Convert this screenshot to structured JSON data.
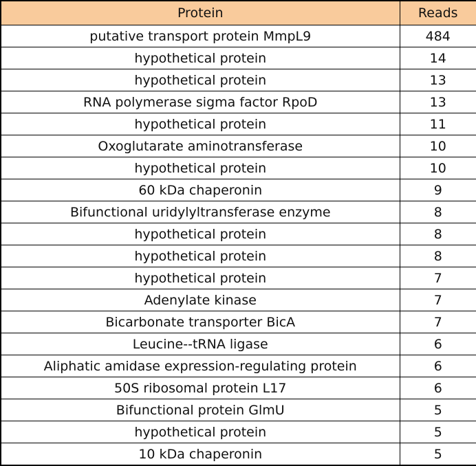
{
  "table": {
    "header_bg": "#f9cb9c",
    "columns": [
      "Protein",
      "Reads"
    ],
    "rows": [
      {
        "protein": "putative transport protein MmpL9",
        "reads": "484"
      },
      {
        "protein": "hypothetical protein",
        "reads": "14"
      },
      {
        "protein": "hypothetical protein",
        "reads": "13"
      },
      {
        "protein": "RNA polymerase sigma factor RpoD",
        "reads": "13"
      },
      {
        "protein": "hypothetical protein",
        "reads": "11"
      },
      {
        "protein": "Oxoglutarate aminotransferase",
        "reads": "10"
      },
      {
        "protein": "hypothetical protein",
        "reads": "10"
      },
      {
        "protein": "60 kDa chaperonin",
        "reads": "9"
      },
      {
        "protein": "Bifunctional uridylyltransferase enzyme",
        "reads": "8"
      },
      {
        "protein": "hypothetical protein",
        "reads": "8"
      },
      {
        "protein": "hypothetical protein",
        "reads": "8"
      },
      {
        "protein": "hypothetical protein",
        "reads": "7"
      },
      {
        "protein": "Adenylate kinase",
        "reads": "7"
      },
      {
        "protein": "Bicarbonate transporter BicA",
        "reads": "7"
      },
      {
        "protein": "Leucine--tRNA ligase",
        "reads": "6"
      },
      {
        "protein": "Aliphatic amidase expression-regulating protein",
        "reads": "6"
      },
      {
        "protein": "50S ribosomal protein L17",
        "reads": "6"
      },
      {
        "protein": "Bifunctional protein GlmU",
        "reads": "5"
      },
      {
        "protein": "hypothetical protein",
        "reads": "5"
      },
      {
        "protein": "10 kDa chaperonin",
        "reads": "5"
      }
    ]
  }
}
